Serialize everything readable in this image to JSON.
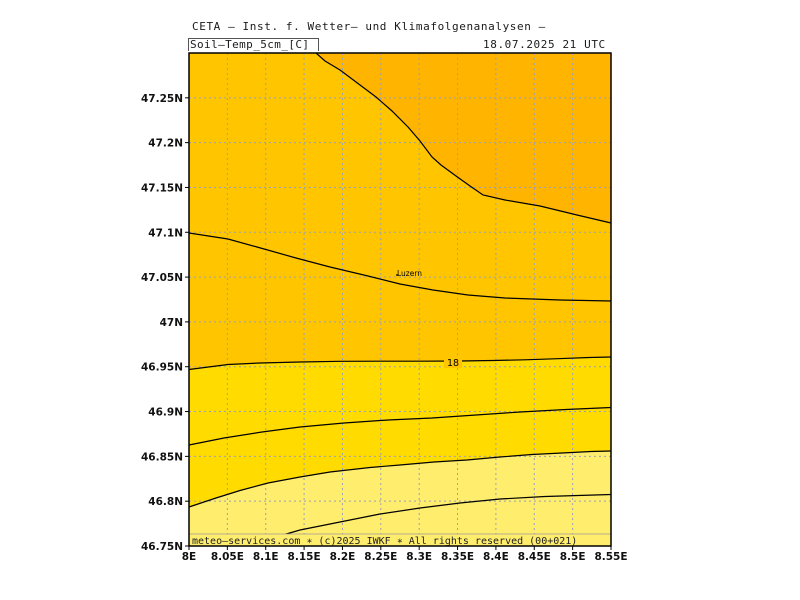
{
  "header": {
    "title": "CETA – Inst. f. Wetter– und Klimafolgenanalysen –",
    "parameter": "Soil–Temp_5cm_[C]",
    "valid_time": "18.07.2025 21 UTC"
  },
  "map": {
    "lon_range": [
      8.0,
      8.55
    ],
    "lat_range": [
      46.75,
      47.3
    ],
    "gridline_style": "dotted",
    "colors": {
      "band_warmest": "#ffb400",
      "band_warm": "#ffc600",
      "band_mid": "#ffdb00",
      "band_cool": "#ffed6e",
      "contour": "#000000",
      "grid": "#9aa0b8"
    },
    "place_label": "Luzern",
    "contour_label": "18",
    "footer": "meteo–services.com ∗ (c)2025 IWKF ∗ All rights reserved (00+021)"
  },
  "axes": {
    "y_ticks": [
      {
        "value": 46.75,
        "label": "46.75N"
      },
      {
        "value": 46.8,
        "label": "46.8N"
      },
      {
        "value": 46.85,
        "label": "46.85N"
      },
      {
        "value": 46.9,
        "label": "46.9N"
      },
      {
        "value": 46.95,
        "label": "46.95N"
      },
      {
        "value": 47.0,
        "label": "47N"
      },
      {
        "value": 47.05,
        "label": "47.05N"
      },
      {
        "value": 47.1,
        "label": "47.1N"
      },
      {
        "value": 47.15,
        "label": "47.15N"
      },
      {
        "value": 47.2,
        "label": "47.2N"
      },
      {
        "value": 47.25,
        "label": "47.25N"
      }
    ],
    "x_ticks": [
      {
        "value": 8.0,
        "label": "8E"
      },
      {
        "value": 8.05,
        "label": "8.05E"
      },
      {
        "value": 8.1,
        "label": "8.1E"
      },
      {
        "value": 8.15,
        "label": "8.15E"
      },
      {
        "value": 8.2,
        "label": "8.2E"
      },
      {
        "value": 8.25,
        "label": "8.25E"
      },
      {
        "value": 8.3,
        "label": "8.3E"
      },
      {
        "value": 8.35,
        "label": "8.35E"
      },
      {
        "value": 8.4,
        "label": "8.4E"
      },
      {
        "value": 8.45,
        "label": "8.45E"
      },
      {
        "value": 8.5,
        "label": "8.5E"
      },
      {
        "value": 8.55,
        "label": "8.55E"
      }
    ]
  }
}
